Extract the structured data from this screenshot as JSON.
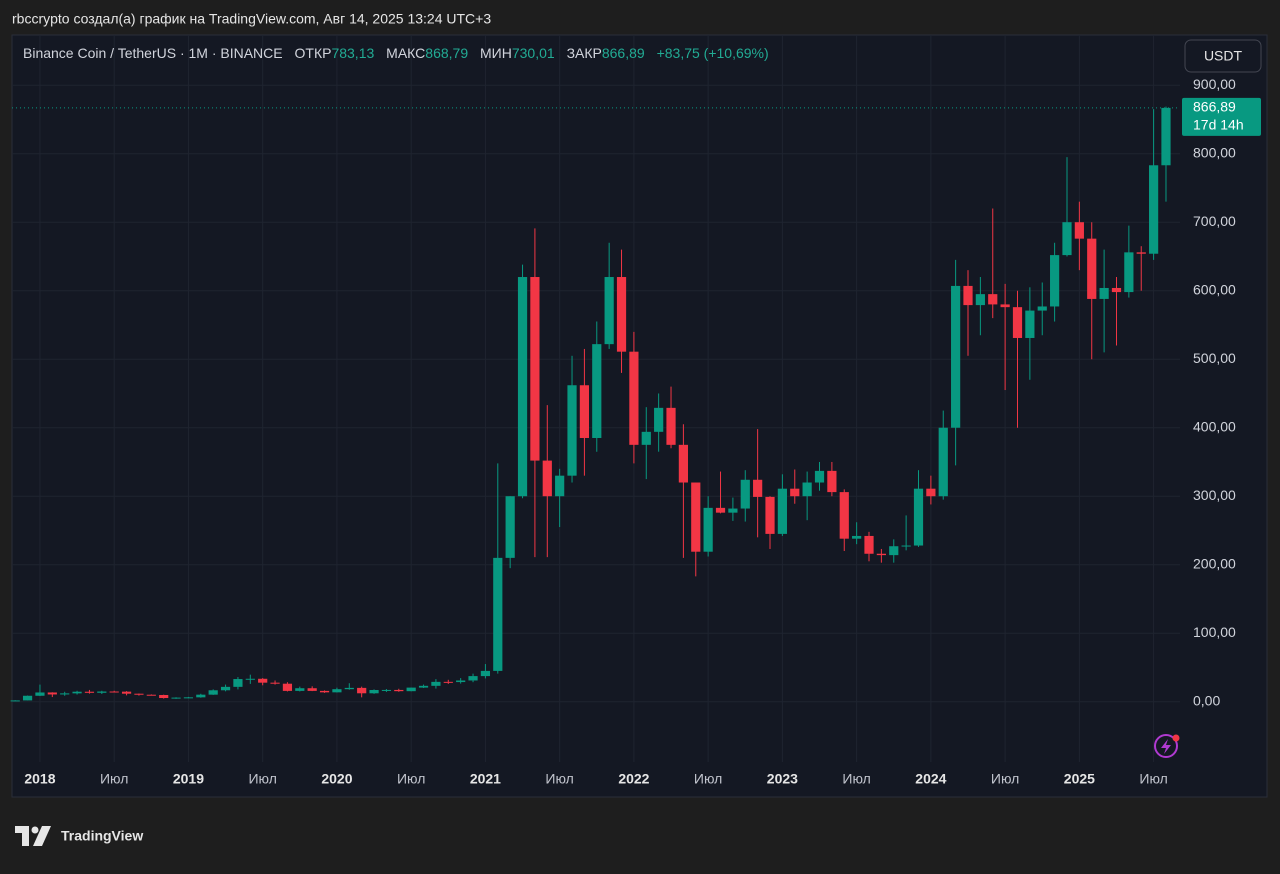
{
  "page": {
    "caption": "rbccrypto создал(а) график на TradingView.com, Авг 14, 2025 13:24 UTC+3",
    "brand": "TradingView"
  },
  "chart_data": {
    "type": "candlestick",
    "symbol": "Binance Coin / TetherUS · 1M · BINANCE",
    "header": {
      "open_label": "ОТКР",
      "open": "783,13",
      "high_label": "МАКС",
      "high": "868,79",
      "low_label": "МИН",
      "low": "730,01",
      "close_label": "ЗАКР",
      "close": "866,89",
      "change": "+83,75 (+10,69%)"
    },
    "currency": "USDT",
    "last_price": {
      "value": 866.89,
      "label": "866,89"
    },
    "countdown": "17d 14h",
    "up_color": "#089981",
    "down_color": "#f23645",
    "grid": true,
    "categories": [
      null,
      null,
      "2018",
      null,
      null,
      null,
      null,
      null,
      "Июл",
      null,
      null,
      null,
      null,
      null,
      "2019",
      null,
      null,
      null,
      null,
      null,
      "Июл",
      null,
      null,
      null,
      null,
      null,
      "2020",
      null,
      null,
      null,
      null,
      null,
      "Июл",
      null,
      null,
      null,
      null,
      null,
      "2021",
      null,
      null,
      null,
      null,
      null,
      "Июл",
      null,
      null,
      null,
      null,
      null,
      "2022",
      null,
      null,
      null,
      null,
      null,
      "Июл",
      null,
      null,
      null,
      null,
      null,
      "2023",
      null,
      null,
      null,
      null,
      null,
      "Июл",
      null,
      null,
      null,
      null,
      null,
      "2024",
      null,
      null,
      null,
      null,
      null,
      "Июл",
      null,
      null,
      null,
      null,
      null,
      "2025",
      null,
      null,
      null,
      null,
      null,
      "Июл",
      null
    ],
    "open": [
      1.8,
      1.9,
      8.7,
      13.5,
      10.6,
      12.2,
      14.6,
      13.0,
      14.9,
      14.7,
      11.7,
      10.2,
      9.8,
      5.4,
      6.0,
      6.4,
      10.3,
      16.7,
      21.7,
      33.1,
      33.5,
      27.8,
      26.3,
      15.8,
      19.7,
      15.8,
      13.7,
      18.3,
      20.2,
      12.3,
      17.1,
      17.2,
      15.4,
      20.6,
      23.2,
      29.0,
      28.7,
      31.0,
      37.4,
      45,
      210,
      300,
      620,
      352,
      300,
      330,
      462,
      385,
      522,
      620,
      511,
      375,
      394,
      429,
      375,
      320,
      219,
      283,
      276,
      282,
      324,
      299,
      245,
      311,
      300,
      320,
      337,
      306,
      238,
      242,
      216,
      214,
      227,
      228,
      311,
      300,
      400,
      607,
      579,
      595,
      580,
      576,
      531,
      571,
      577,
      652,
      700,
      676,
      588,
      604,
      598,
      656,
      654,
      783.13
    ],
    "high": [
      2.2,
      9.0,
      25,
      13.8,
      14.5,
      16.0,
      17.2,
      16.0,
      16.0,
      15.5,
      11.9,
      10.7,
      10.3,
      6.5,
      7.0,
      11.6,
      18.0,
      25.0,
      36.0,
      39.5,
      34.5,
      31.0,
      28.5,
      22.0,
      22.5,
      16.5,
      20.5,
      27.0,
      22.0,
      18.0,
      18.5,
      18.9,
      20.7,
      25.0,
      33.0,
      32.0,
      34.5,
      41.0,
      55,
      348,
      300,
      638,
      691,
      433,
      340,
      505,
      515,
      555,
      670,
      660,
      540,
      430,
      450,
      460,
      405,
      320,
      300,
      336,
      298,
      338,
      398,
      300,
      332,
      339,
      336,
      350,
      350,
      310,
      262,
      248,
      223,
      237,
      272,
      338,
      330,
      425,
      645,
      630,
      620,
      720,
      610,
      600,
      605,
      612,
      670,
      795,
      730,
      700,
      660,
      620,
      695,
      665,
      865,
      868.79
    ],
    "low": [
      1.5,
      1.9,
      8.3,
      6.8,
      8.7,
      10.5,
      11.8,
      11.3,
      13.5,
      9.3,
      8.9,
      9.0,
      4.6,
      4.2,
      5.2,
      5.8,
      10.0,
      15.2,
      18.0,
      26.0,
      24.0,
      25.0,
      15.0,
      15.0,
      15.5,
      12.9,
      13.5,
      17.5,
      6.4,
      11.5,
      14.3,
      14.5,
      15.2,
      20.0,
      19.2,
      26.0,
      26.5,
      28.5,
      34,
      41,
      195,
      297,
      211,
      211,
      255,
      320,
      330,
      365,
      515,
      480,
      348,
      325,
      365,
      370,
      210,
      183,
      212,
      275,
      264,
      263,
      240,
      223,
      242,
      289,
      265,
      308,
      300,
      220,
      230,
      205,
      203,
      203,
      221,
      226,
      288,
      295,
      345,
      505,
      535,
      560,
      455,
      400,
      470,
      535,
      555,
      650,
      630,
      500,
      510,
      520,
      590,
      600,
      645,
      730.01
    ],
    "close": [
      1.9,
      8.7,
      13.5,
      10.6,
      12.2,
      14.6,
      13.0,
      14.9,
      14.7,
      11.7,
      10.2,
      9.8,
      5.4,
      6.0,
      6.4,
      10.3,
      16.7,
      21.7,
      33.1,
      33.5,
      27.8,
      26.3,
      15.8,
      19.7,
      15.8,
      13.7,
      18.3,
      20.2,
      12.3,
      17.1,
      17.2,
      15.4,
      20.6,
      23.2,
      29.0,
      28.7,
      31.0,
      37.4,
      45,
      210,
      300,
      620,
      352,
      300,
      330,
      462,
      385,
      522,
      620,
      511,
      375,
      394,
      429,
      375,
      320,
      219,
      283,
      276,
      282,
      324,
      299,
      245,
      311,
      300,
      320,
      337,
      306,
      238,
      242,
      216,
      214,
      227,
      228,
      311,
      300,
      400,
      607,
      579,
      595,
      580,
      576,
      531,
      571,
      577,
      652,
      700,
      676,
      588,
      604,
      598,
      656,
      654,
      783.13,
      866.89
    ],
    "ylim": [
      -88,
      966
    ],
    "yticks": [
      {
        "value": 0,
        "label": "0,00"
      },
      {
        "value": 100,
        "label": "100,00"
      },
      {
        "value": 200,
        "label": "200,00"
      },
      {
        "value": 300,
        "label": "300,00"
      },
      {
        "value": 400,
        "label": "400,00"
      },
      {
        "value": 500,
        "label": "500,00"
      },
      {
        "value": 600,
        "label": "600,00"
      },
      {
        "value": 700,
        "label": "700,00"
      },
      {
        "value": 800,
        "label": "800,00"
      },
      {
        "value": 900,
        "label": "900,00"
      }
    ]
  }
}
